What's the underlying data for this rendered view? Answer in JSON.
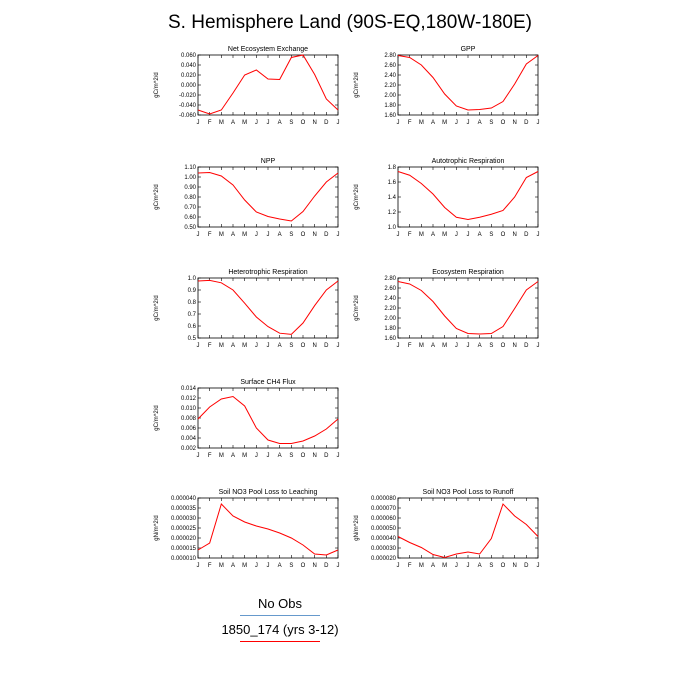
{
  "figure": {
    "title": "S. Hemisphere Land (90S-EQ,180W-180E)"
  },
  "colors": {
    "model": "#ff0000",
    "obs": "#6699cc"
  },
  "legend": {
    "obs_label": "No Obs",
    "model_label": "1850_174 (yrs 3-12)"
  },
  "chart_data": [
    {
      "id": "nee",
      "type": "line",
      "title": "Net Ecosystem Exchange",
      "ylabel": "gC/m^2/d",
      "categories": [
        "J",
        "F",
        "M",
        "A",
        "M",
        "J",
        "J",
        "A",
        "S",
        "O",
        "N",
        "D",
        "J"
      ],
      "yticks": [
        "-0.060",
        "-0.040",
        "-0.020",
        "0.000",
        "0.020",
        "0.040",
        "0.060"
      ],
      "ylim": [
        -0.06,
        0.06
      ],
      "values": [
        -0.05,
        -0.058,
        -0.05,
        -0.016,
        0.02,
        0.03,
        0.012,
        0.011,
        0.055,
        0.06,
        0.021,
        -0.028,
        -0.05
      ]
    },
    {
      "id": "gpp",
      "type": "line",
      "title": "GPP",
      "ylabel": "gC/m^2/d",
      "categories": [
        "J",
        "F",
        "M",
        "A",
        "M",
        "J",
        "J",
        "A",
        "S",
        "O",
        "N",
        "D",
        "J"
      ],
      "yticks": [
        "1.60",
        "1.80",
        "2.00",
        "2.20",
        "2.40",
        "2.60",
        "2.80"
      ],
      "ylim": [
        1.6,
        2.8
      ],
      "values": [
        2.79,
        2.75,
        2.6,
        2.35,
        2.02,
        1.78,
        1.7,
        1.71,
        1.74,
        1.87,
        2.22,
        2.62,
        2.79
      ]
    },
    {
      "id": "npp",
      "type": "line",
      "title": "NPP",
      "ylabel": "gC/m^2/d",
      "categories": [
        "J",
        "F",
        "M",
        "A",
        "M",
        "J",
        "J",
        "A",
        "S",
        "O",
        "N",
        "D",
        "J"
      ],
      "yticks": [
        "0.50",
        "0.60",
        "0.70",
        "0.80",
        "0.90",
        "1.00",
        "1.10"
      ],
      "ylim": [
        0.5,
        1.1
      ],
      "values": [
        1.04,
        1.045,
        1.01,
        0.92,
        0.77,
        0.65,
        0.605,
        0.58,
        0.56,
        0.655,
        0.81,
        0.95,
        1.04
      ]
    },
    {
      "id": "ar",
      "type": "line",
      "title": "Autotrophic Respiration",
      "ylabel": "gC/m^2/d",
      "categories": [
        "J",
        "F",
        "M",
        "A",
        "M",
        "J",
        "J",
        "A",
        "S",
        "O",
        "N",
        "D",
        "J"
      ],
      "yticks": [
        "1.0",
        "1.2",
        "1.4",
        "1.6",
        "1.8"
      ],
      "ylim": [
        1.0,
        1.8
      ],
      "values": [
        1.74,
        1.69,
        1.58,
        1.44,
        1.26,
        1.13,
        1.1,
        1.13,
        1.17,
        1.22,
        1.4,
        1.66,
        1.74
      ]
    },
    {
      "id": "hr",
      "type": "line",
      "title": "Heterotrophic Respiration",
      "ylabel": "gC/m^2/d",
      "categories": [
        "J",
        "F",
        "M",
        "A",
        "M",
        "J",
        "J",
        "A",
        "S",
        "O",
        "N",
        "D",
        "J"
      ],
      "yticks": [
        "0.5",
        "0.6",
        "0.7",
        "0.8",
        "0.9",
        "1.0"
      ],
      "ylim": [
        0.5,
        1.0
      ],
      "values": [
        0.975,
        0.98,
        0.96,
        0.9,
        0.79,
        0.675,
        0.595,
        0.54,
        0.53,
        0.625,
        0.77,
        0.9,
        0.975
      ]
    },
    {
      "id": "er",
      "type": "line",
      "title": "Ecosystem Respiration",
      "ylabel": "gC/m^2/d",
      "categories": [
        "J",
        "F",
        "M",
        "A",
        "M",
        "J",
        "J",
        "A",
        "S",
        "O",
        "N",
        "D",
        "J"
      ],
      "yticks": [
        "1.60",
        "1.80",
        "2.00",
        "2.20",
        "2.40",
        "2.60",
        "2.80"
      ],
      "ylim": [
        1.6,
        2.8
      ],
      "values": [
        2.73,
        2.68,
        2.55,
        2.33,
        2.04,
        1.79,
        1.69,
        1.68,
        1.69,
        1.83,
        2.19,
        2.56,
        2.73
      ]
    },
    {
      "id": "ch4",
      "type": "line",
      "title": "Surface CH4 Flux",
      "ylabel": "gC/m^2/d",
      "categories": [
        "J",
        "F",
        "M",
        "A",
        "M",
        "J",
        "J",
        "A",
        "S",
        "O",
        "N",
        "D",
        "J"
      ],
      "yticks": [
        "0.002",
        "0.004",
        "0.006",
        "0.008",
        "0.010",
        "0.012",
        "0.014"
      ],
      "ylim": [
        0.002,
        0.014
      ],
      "values": [
        0.0078,
        0.0102,
        0.0118,
        0.0123,
        0.0104,
        0.006,
        0.0036,
        0.0029,
        0.0029,
        0.0034,
        0.0044,
        0.0058,
        0.0078
      ]
    },
    {
      "id": "leach",
      "type": "line",
      "title": "Soil NO3 Pool Loss to Leaching",
      "ylabel": "gN/m^2/d",
      "categories": [
        "J",
        "F",
        "M",
        "A",
        "M",
        "J",
        "J",
        "A",
        "S",
        "O",
        "N",
        "D",
        "J"
      ],
      "yticks": [
        "0.000010",
        "0.000015",
        "0.000020",
        "0.000025",
        "0.000030",
        "0.000035",
        "0.000040"
      ],
      "ylim": [
        1e-05,
        4e-05
      ],
      "values": [
        1.4e-05,
        1.75e-05,
        3.7e-05,
        3.1e-05,
        2.8e-05,
        2.6e-05,
        2.45e-05,
        2.25e-05,
        2e-05,
        1.65e-05,
        1.2e-05,
        1.15e-05,
        1.4e-05
      ]
    },
    {
      "id": "runoff",
      "type": "line",
      "title": "Soil NO3 Pool Loss to Runoff",
      "ylabel": "gN/m^2/d",
      "categories": [
        "J",
        "F",
        "M",
        "A",
        "M",
        "J",
        "J",
        "A",
        "S",
        "O",
        "N",
        "D",
        "J"
      ],
      "yticks": [
        "0.000020",
        "0.000030",
        "0.000040",
        "0.000050",
        "0.000060",
        "0.000070",
        "0.000080"
      ],
      "ylim": [
        2e-05,
        8e-05
      ],
      "values": [
        4.15e-05,
        3.55e-05,
        3.05e-05,
        2.35e-05,
        2.05e-05,
        2.4e-05,
        2.6e-05,
        2.4e-05,
        3.95e-05,
        7.4e-05,
        6.2e-05,
        5.35e-05,
        4.15e-05
      ]
    }
  ]
}
